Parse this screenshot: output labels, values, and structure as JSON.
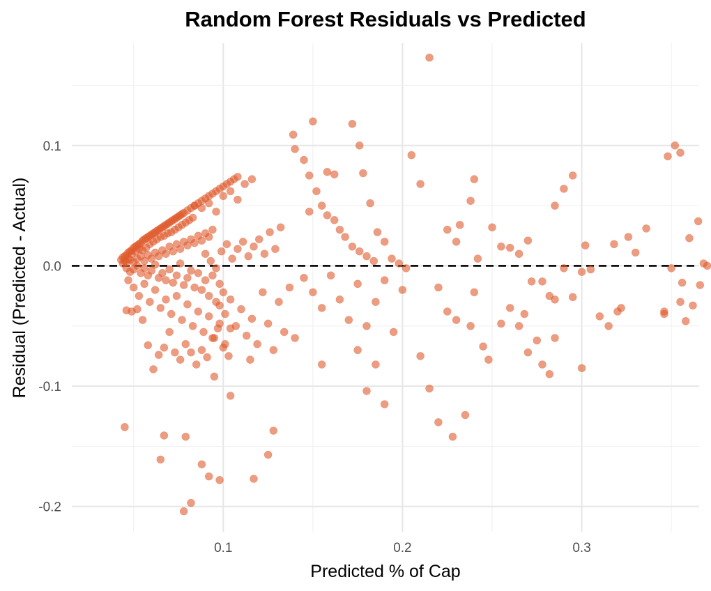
{
  "chart_data": {
    "type": "scatter",
    "title": "Random Forest Residuals vs Predicted",
    "xlabel": "Predicted % of Cap",
    "ylabel": "Residual (Predicted - Actual)",
    "xlim": [
      0.0155,
      0.3655
    ],
    "ylim": [
      -0.221,
      0.185
    ],
    "x_ticks": [
      0.1,
      0.2,
      0.3
    ],
    "x_tick_labels": [
      "0.1",
      "0.2",
      "0.3"
    ],
    "y_ticks": [
      -0.2,
      -0.1,
      0.0,
      0.1
    ],
    "y_tick_labels": [
      "-0.2",
      "-0.1",
      "0.0",
      "0.1"
    ],
    "grid": true,
    "reference_line": {
      "y": 0,
      "style": "dashed",
      "color": "#000000"
    },
    "marker_color": "#e05a2b",
    "marker_opacity": 0.6,
    "points": [
      [
        0.043,
        0.005
      ],
      [
        0.044,
        0.007
      ],
      [
        0.045,
        0.008
      ],
      [
        0.046,
        0.009
      ],
      [
        0.047,
        0.011
      ],
      [
        0.048,
        0.012
      ],
      [
        0.049,
        0.013
      ],
      [
        0.05,
        0.015
      ],
      [
        0.051,
        0.016
      ],
      [
        0.052,
        0.017
      ],
      [
        0.053,
        0.018
      ],
      [
        0.054,
        0.019
      ],
      [
        0.055,
        0.021
      ],
      [
        0.056,
        0.022
      ],
      [
        0.057,
        0.023
      ],
      [
        0.058,
        0.024
      ],
      [
        0.059,
        0.025
      ],
      [
        0.06,
        0.026
      ],
      [
        0.061,
        0.027
      ],
      [
        0.062,
        0.028
      ],
      [
        0.063,
        0.029
      ],
      [
        0.064,
        0.03
      ],
      [
        0.065,
        0.031
      ],
      [
        0.066,
        0.032
      ],
      [
        0.067,
        0.033
      ],
      [
        0.068,
        0.034
      ],
      [
        0.069,
        0.035
      ],
      [
        0.07,
        0.036
      ],
      [
        0.071,
        0.037
      ],
      [
        0.072,
        0.038
      ],
      [
        0.073,
        0.039
      ],
      [
        0.074,
        0.04
      ],
      [
        0.075,
        0.041
      ],
      [
        0.076,
        0.042
      ],
      [
        0.077,
        0.043
      ],
      [
        0.078,
        0.044
      ],
      [
        0.08,
        0.046
      ],
      [
        0.082,
        0.048
      ],
      [
        0.084,
        0.05
      ],
      [
        0.086,
        0.052
      ],
      [
        0.088,
        0.054
      ],
      [
        0.09,
        0.056
      ],
      [
        0.092,
        0.058
      ],
      [
        0.094,
        0.06
      ],
      [
        0.096,
        0.062
      ],
      [
        0.098,
        0.064
      ],
      [
        0.1,
        0.066
      ],
      [
        0.102,
        0.068
      ],
      [
        0.104,
        0.07
      ],
      [
        0.106,
        0.072
      ],
      [
        0.108,
        0.074
      ],
      [
        0.045,
        0.004
      ],
      [
        0.047,
        0.006
      ],
      [
        0.049,
        0.01
      ],
      [
        0.051,
        0.012
      ],
      [
        0.053,
        0.014
      ],
      [
        0.055,
        0.013
      ],
      [
        0.057,
        0.015
      ],
      [
        0.059,
        0.018
      ],
      [
        0.061,
        0.02
      ],
      [
        0.063,
        0.022
      ],
      [
        0.065,
        0.024
      ],
      [
        0.067,
        0.025
      ],
      [
        0.069,
        0.027
      ],
      [
        0.071,
        0.028
      ],
      [
        0.073,
        0.03
      ],
      [
        0.075,
        0.032
      ],
      [
        0.077,
        0.034
      ],
      [
        0.079,
        0.036
      ],
      [
        0.081,
        0.038
      ],
      [
        0.083,
        0.04
      ],
      [
        0.044,
        0.002
      ],
      [
        0.046,
        0.003
      ],
      [
        0.048,
        0.005
      ],
      [
        0.05,
        0.003
      ],
      [
        0.052,
        0.006
      ],
      [
        0.054,
        0.008
      ],
      [
        0.056,
        0.004
      ],
      [
        0.058,
        0.009
      ],
      [
        0.06,
        0.006
      ],
      [
        0.062,
        0.011
      ],
      [
        0.064,
        0.008
      ],
      [
        0.066,
        0.013
      ],
      [
        0.068,
        0.01
      ],
      [
        0.07,
        0.016
      ],
      [
        0.072,
        0.012
      ],
      [
        0.074,
        0.018
      ],
      [
        0.076,
        0.014
      ],
      [
        0.078,
        0.02
      ],
      [
        0.08,
        0.017
      ],
      [
        0.082,
        0.022
      ],
      [
        0.084,
        0.019
      ],
      [
        0.086,
        0.025
      ],
      [
        0.088,
        0.021
      ],
      [
        0.09,
        0.027
      ],
      [
        0.092,
        0.024
      ],
      [
        0.094,
        0.03
      ],
      [
        0.046,
        -0.002
      ],
      [
        0.048,
        -0.005
      ],
      [
        0.05,
        -0.003
      ],
      [
        0.052,
        0.0
      ],
      [
        0.054,
        -0.006
      ],
      [
        0.056,
        -0.002
      ],
      [
        0.058,
        -0.008
      ],
      [
        0.06,
        -0.004
      ],
      [
        0.062,
        0.001
      ],
      [
        0.064,
        -0.01
      ],
      [
        0.066,
        -0.006
      ],
      [
        0.068,
        -0.012
      ],
      [
        0.07,
        -0.003
      ],
      [
        0.072,
        -0.014
      ],
      [
        0.074,
        -0.008
      ],
      [
        0.076,
        0.002
      ],
      [
        0.078,
        -0.016
      ],
      [
        0.08,
        -0.01
      ],
      [
        0.082,
        -0.004
      ],
      [
        0.084,
        -0.018
      ],
      [
        0.086,
        -0.006
      ],
      [
        0.088,
        -0.02
      ],
      [
        0.09,
        -0.012
      ],
      [
        0.092,
        -0.025
      ],
      [
        0.094,
        -0.008
      ],
      [
        0.096,
        -0.03
      ],
      [
        0.098,
        -0.015
      ],
      [
        0.1,
        -0.022
      ],
      [
        0.047,
        -0.012
      ],
      [
        0.05,
        -0.018
      ],
      [
        0.053,
        -0.025
      ],
      [
        0.056,
        -0.015
      ],
      [
        0.059,
        -0.03
      ],
      [
        0.062,
        -0.02
      ],
      [
        0.065,
        -0.035
      ],
      [
        0.068,
        -0.028
      ],
      [
        0.071,
        -0.04
      ],
      [
        0.074,
        -0.025
      ],
      [
        0.077,
        -0.045
      ],
      [
        0.08,
        -0.032
      ],
      [
        0.083,
        -0.05
      ],
      [
        0.086,
        -0.038
      ],
      [
        0.089,
        -0.055
      ],
      [
        0.092,
        -0.042
      ],
      [
        0.095,
        -0.06
      ],
      [
        0.098,
        -0.048
      ],
      [
        0.101,
        -0.065
      ],
      [
        0.104,
        -0.052
      ],
      [
        0.046,
        -0.037
      ],
      [
        0.049,
        -0.038
      ],
      [
        0.052,
        -0.036
      ],
      [
        0.055,
        -0.045
      ],
      [
        0.058,
        -0.066
      ],
      [
        0.061,
        -0.086
      ],
      [
        0.064,
        -0.074
      ],
      [
        0.067,
        -0.068
      ],
      [
        0.07,
        -0.055
      ],
      [
        0.073,
        -0.072
      ],
      [
        0.076,
        -0.078
      ],
      [
        0.079,
        -0.065
      ],
      [
        0.082,
        -0.072
      ],
      [
        0.085,
        -0.082
      ],
      [
        0.088,
        -0.07
      ],
      [
        0.091,
        -0.076
      ],
      [
        0.094,
        -0.06
      ],
      [
        0.097,
        -0.052
      ],
      [
        0.1,
        -0.068
      ],
      [
        0.103,
        -0.075
      ],
      [
        0.09,
        0.01
      ],
      [
        0.093,
        0.004
      ],
      [
        0.096,
        -0.002
      ],
      [
        0.099,
        0.012
      ],
      [
        0.102,
        0.018
      ],
      [
        0.105,
        0.006
      ],
      [
        0.108,
        0.014
      ],
      [
        0.111,
        0.02
      ],
      [
        0.114,
        0.008
      ],
      [
        0.117,
        0.016
      ],
      [
        0.12,
        0.022
      ],
      [
        0.123,
        0.01
      ],
      [
        0.126,
        0.028
      ],
      [
        0.129,
        0.014
      ],
      [
        0.132,
        0.032
      ],
      [
        0.084,
        0.05
      ],
      [
        0.088,
        0.048
      ],
      [
        0.092,
        0.052
      ],
      [
        0.096,
        0.045
      ],
      [
        0.1,
        0.058
      ],
      [
        0.104,
        0.062
      ],
      [
        0.108,
        0.055
      ],
      [
        0.112,
        0.068
      ],
      [
        0.116,
        0.072
      ],
      [
        0.098,
        -0.033
      ],
      [
        0.101,
        -0.04
      ],
      [
        0.104,
        -0.028
      ],
      [
        0.107,
        -0.05
      ],
      [
        0.11,
        -0.036
      ],
      [
        0.113,
        -0.058
      ],
      [
        0.116,
        -0.044
      ],
      [
        0.119,
        -0.065
      ],
      [
        0.122,
        -0.022
      ],
      [
        0.125,
        -0.048
      ],
      [
        0.128,
        -0.07
      ],
      [
        0.131,
        -0.03
      ],
      [
        0.134,
        -0.055
      ],
      [
        0.137,
        -0.018
      ],
      [
        0.14,
        -0.06
      ],
      [
        0.095,
        -0.092
      ],
      [
        0.115,
        -0.078
      ],
      [
        0.104,
        -0.108
      ],
      [
        0.045,
        -0.134
      ],
      [
        0.067,
        -0.141
      ],
      [
        0.079,
        -0.142
      ],
      [
        0.065,
        -0.161
      ],
      [
        0.088,
        -0.165
      ],
      [
        0.092,
        -0.175
      ],
      [
        0.117,
        -0.177
      ],
      [
        0.125,
        -0.157
      ],
      [
        0.128,
        -0.137
      ],
      [
        0.082,
        -0.197
      ],
      [
        0.078,
        -0.204
      ],
      [
        0.098,
        -0.178
      ],
      [
        0.139,
        0.109
      ],
      [
        0.14,
        0.097
      ],
      [
        0.145,
        0.088
      ],
      [
        0.148,
        0.075
      ],
      [
        0.152,
        0.062
      ],
      [
        0.155,
        0.05
      ],
      [
        0.158,
        0.042
      ],
      [
        0.162,
        0.038
      ],
      [
        0.165,
        0.03
      ],
      [
        0.168,
        0.024
      ],
      [
        0.172,
        0.016
      ],
      [
        0.176,
        0.012
      ],
      [
        0.18,
        0.008
      ],
      [
        0.184,
        0.004
      ],
      [
        0.148,
        0.045
      ],
      [
        0.15,
        0.12
      ],
      [
        0.158,
        0.078
      ],
      [
        0.162,
        0.076
      ],
      [
        0.172,
        0.118
      ],
      [
        0.176,
        0.1
      ],
      [
        0.178,
        0.077
      ],
      [
        0.182,
        0.052
      ],
      [
        0.186,
        0.028
      ],
      [
        0.19,
        0.02
      ],
      [
        0.194,
        0.006
      ],
      [
        0.198,
        0.002
      ],
      [
        0.202,
        -0.002
      ],
      [
        0.145,
        -0.01
      ],
      [
        0.15,
        -0.022
      ],
      [
        0.155,
        -0.035
      ],
      [
        0.16,
        -0.008
      ],
      [
        0.165,
        -0.028
      ],
      [
        0.17,
        -0.045
      ],
      [
        0.175,
        -0.015
      ],
      [
        0.18,
        -0.05
      ],
      [
        0.185,
        -0.03
      ],
      [
        0.19,
        -0.012
      ],
      [
        0.195,
        -0.055
      ],
      [
        0.2,
        -0.02
      ],
      [
        0.155,
        -0.082
      ],
      [
        0.175,
        -0.07
      ],
      [
        0.185,
        -0.082
      ],
      [
        0.18,
        -0.104
      ],
      [
        0.19,
        -0.115
      ],
      [
        0.21,
        -0.075
      ],
      [
        0.215,
        -0.102
      ],
      [
        0.22,
        -0.13
      ],
      [
        0.228,
        -0.142
      ],
      [
        0.235,
        -0.124
      ],
      [
        0.215,
        0.173
      ],
      [
        0.205,
        0.092
      ],
      [
        0.21,
        0.068
      ],
      [
        0.225,
        0.03
      ],
      [
        0.23,
        0.02
      ],
      [
        0.232,
        0.034
      ],
      [
        0.238,
        0.054
      ],
      [
        0.24,
        0.072
      ],
      [
        0.242,
        0.006
      ],
      [
        0.25,
        0.032
      ],
      [
        0.255,
        0.016
      ],
      [
        0.26,
        0.015
      ],
      [
        0.265,
        0.01
      ],
      [
        0.27,
        0.021
      ],
      [
        0.22,
        -0.018
      ],
      [
        0.225,
        -0.038
      ],
      [
        0.23,
        -0.045
      ],
      [
        0.238,
        -0.05
      ],
      [
        0.24,
        -0.022
      ],
      [
        0.245,
        -0.067
      ],
      [
        0.248,
        -0.078
      ],
      [
        0.255,
        -0.048
      ],
      [
        0.26,
        -0.035
      ],
      [
        0.265,
        -0.05
      ],
      [
        0.268,
        -0.04
      ],
      [
        0.27,
        -0.072
      ],
      [
        0.275,
        -0.062
      ],
      [
        0.278,
        -0.082
      ],
      [
        0.282,
        -0.09
      ],
      [
        0.285,
        -0.06
      ],
      [
        0.272,
        -0.013
      ],
      [
        0.278,
        -0.013
      ],
      [
        0.282,
        -0.025
      ],
      [
        0.285,
        -0.028
      ],
      [
        0.29,
        -0.002
      ],
      [
        0.295,
        -0.026
      ],
      [
        0.3,
        -0.005
      ],
      [
        0.305,
        -0.003
      ],
      [
        0.31,
        -0.042
      ],
      [
        0.315,
        -0.05
      ],
      [
        0.32,
        -0.038
      ],
      [
        0.322,
        -0.035
      ],
      [
        0.318,
        0.018
      ],
      [
        0.326,
        0.024
      ],
      [
        0.33,
        0.011
      ],
      [
        0.336,
        0.031
      ],
      [
        0.285,
        0.05
      ],
      [
        0.29,
        0.064
      ],
      [
        0.295,
        0.075
      ],
      [
        0.3,
        -0.085
      ],
      [
        0.302,
        0.017
      ],
      [
        0.346,
        -0.04
      ],
      [
        0.348,
        0.091
      ],
      [
        0.352,
        0.1
      ],
      [
        0.355,
        0.094
      ],
      [
        0.346,
        -0.038
      ],
      [
        0.35,
        -0.002
      ],
      [
        0.355,
        -0.03
      ],
      [
        0.356,
        -0.014
      ],
      [
        0.36,
        0.023
      ],
      [
        0.365,
        0.037
      ],
      [
        0.368,
        0.002
      ],
      [
        0.358,
        -0.046
      ],
      [
        0.362,
        -0.033
      ],
      [
        0.366,
        -0.016
      ],
      [
        0.37,
        0.0
      ]
    ]
  }
}
